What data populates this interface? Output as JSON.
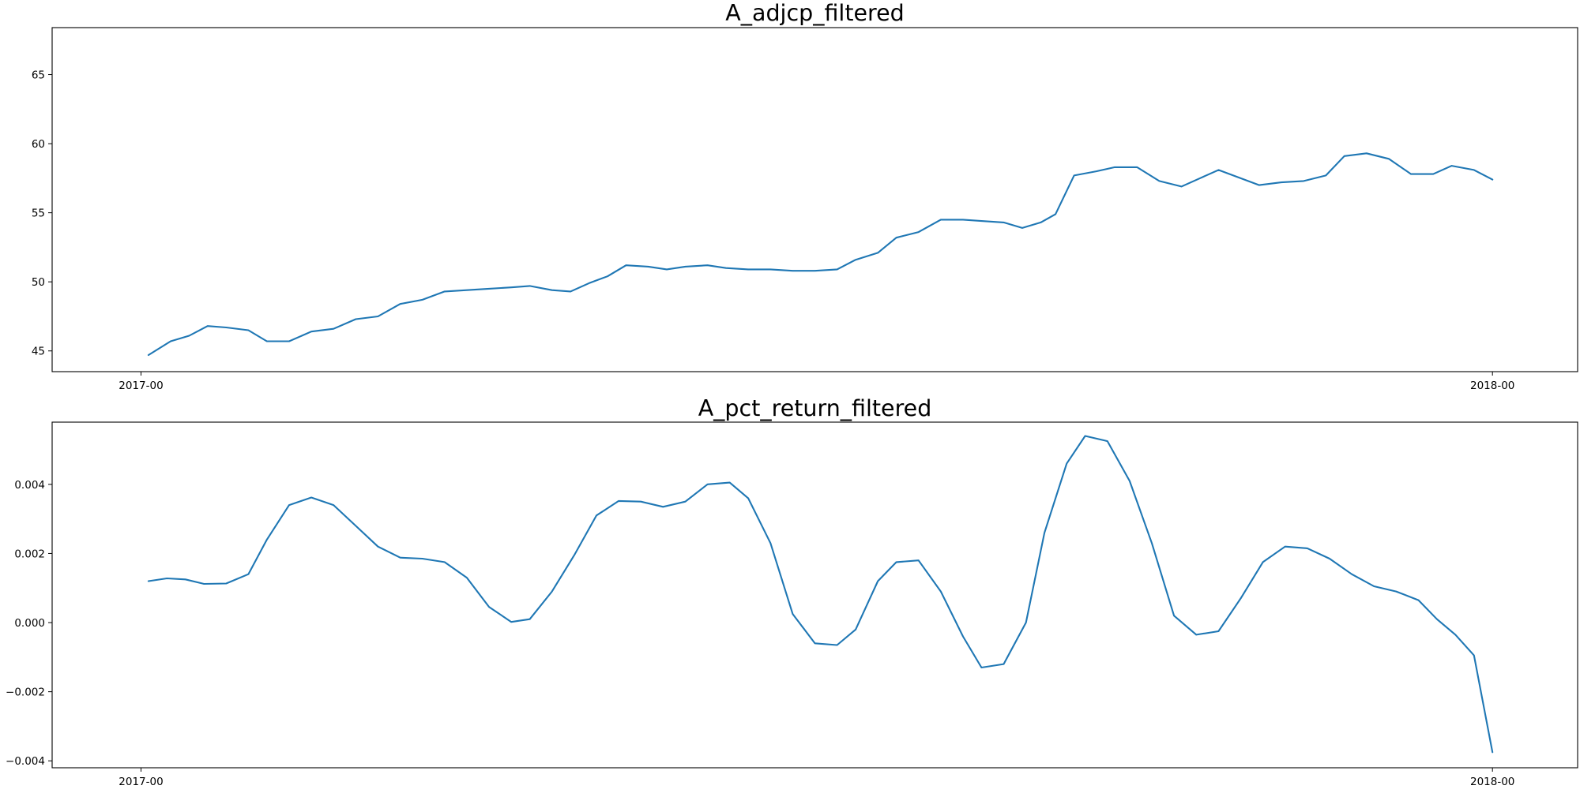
{
  "chart_data": [
    {
      "type": "line",
      "title": "A_adjcp_filtered",
      "xlabel": "",
      "ylabel": "",
      "x_axis": {
        "type": "date",
        "ticks": [
          {
            "date": "2017-01-01",
            "label": "2017-00"
          },
          {
            "date": "2018-01-01",
            "label": "2018-00"
          }
        ],
        "xlim": [
          "2016-12-08",
          "2018-01-24"
        ]
      },
      "ylim": [
        43.5,
        68.4
      ],
      "yticks": [
        {
          "value": 45,
          "label": "45"
        },
        {
          "value": 50,
          "label": "50"
        },
        {
          "value": 55,
          "label": "55"
        },
        {
          "value": 60,
          "label": "60"
        },
        {
          "value": 65,
          "label": "65"
        }
      ],
      "grid": false,
      "series": [
        {
          "color": "#1f77b4",
          "points": [
            [
              "2017-01-03",
              44.7
            ],
            [
              "2017-01-09",
              45.7
            ],
            [
              "2017-01-14",
              46.1
            ],
            [
              "2017-01-19",
              46.8
            ],
            [
              "2017-01-24",
              46.7
            ],
            [
              "2017-01-30",
              46.5
            ],
            [
              "2017-02-04",
              45.7
            ],
            [
              "2017-02-10",
              45.7
            ],
            [
              "2017-02-16",
              46.4
            ],
            [
              "2017-02-22",
              46.6
            ],
            [
              "2017-02-28",
              47.3
            ],
            [
              "2017-03-06",
              47.5
            ],
            [
              "2017-03-12",
              48.4
            ],
            [
              "2017-03-18",
              48.7
            ],
            [
              "2017-03-24",
              49.3
            ],
            [
              "2017-03-30",
              49.4
            ],
            [
              "2017-04-05",
              49.5
            ],
            [
              "2017-04-11",
              49.6
            ],
            [
              "2017-04-16",
              49.7
            ],
            [
              "2017-04-22",
              49.4
            ],
            [
              "2017-04-27",
              49.3
            ],
            [
              "2017-05-02",
              49.9
            ],
            [
              "2017-05-07",
              50.4
            ],
            [
              "2017-05-12",
              51.2
            ],
            [
              "2017-05-18",
              51.1
            ],
            [
              "2017-05-23",
              50.9
            ],
            [
              "2017-05-28",
              51.1
            ],
            [
              "2017-06-03",
              51.2
            ],
            [
              "2017-06-08",
              51.0
            ],
            [
              "2017-06-14",
              50.9
            ],
            [
              "2017-06-20",
              50.9
            ],
            [
              "2017-06-26",
              50.8
            ],
            [
              "2017-07-02",
              50.8
            ],
            [
              "2017-07-08",
              50.9
            ],
            [
              "2017-07-13",
              51.6
            ],
            [
              "2017-07-19",
              52.1
            ],
            [
              "2017-07-24",
              53.2
            ],
            [
              "2017-07-30",
              53.6
            ],
            [
              "2017-08-05",
              54.5
            ],
            [
              "2017-08-11",
              54.5
            ],
            [
              "2017-08-16",
              54.4
            ],
            [
              "2017-08-22",
              54.3
            ],
            [
              "2017-08-27",
              53.9
            ],
            [
              "2017-09-01",
              54.3
            ],
            [
              "2017-09-05",
              54.9
            ],
            [
              "2017-09-10",
              57.7
            ],
            [
              "2017-09-16",
              58.0
            ],
            [
              "2017-09-21",
              58.3
            ],
            [
              "2017-09-27",
              58.3
            ],
            [
              "2017-10-03",
              57.3
            ],
            [
              "2017-10-09",
              56.9
            ],
            [
              "2017-10-14",
              57.5
            ],
            [
              "2017-10-19",
              58.1
            ],
            [
              "2017-10-25",
              57.5
            ],
            [
              "2017-10-30",
              57.0
            ],
            [
              "2017-11-05",
              57.2
            ],
            [
              "2017-11-11",
              57.3
            ],
            [
              "2017-11-17",
              57.7
            ],
            [
              "2017-11-22",
              59.1
            ],
            [
              "2017-11-28",
              59.3
            ],
            [
              "2017-12-04",
              58.9
            ],
            [
              "2017-12-10",
              57.8
            ],
            [
              "2017-12-16",
              57.8
            ],
            [
              "2017-12-21",
              58.4
            ],
            [
              "2017-12-27",
              58.1
            ],
            [
              "2018-01-01",
              57.4
            ]
          ]
        }
      ]
    },
    {
      "type": "line",
      "title": "A_pct_return_filtered",
      "xlabel": "",
      "ylabel": "",
      "x_axis": {
        "type": "date",
        "ticks": [
          {
            "date": "2017-01-01",
            "label": "2017-00"
          },
          {
            "date": "2018-01-01",
            "label": "2018-00"
          }
        ],
        "xlim": [
          "2016-12-08",
          "2018-01-24"
        ]
      },
      "ylim": [
        -0.0042,
        0.0058
      ],
      "yticks": [
        {
          "value": -0.004,
          "label": "−0.004"
        },
        {
          "value": -0.002,
          "label": "−0.002"
        },
        {
          "value": 0.0,
          "label": "0.000"
        },
        {
          "value": 0.002,
          "label": "0.002"
        },
        {
          "value": 0.004,
          "label": "0.004"
        }
      ],
      "grid": false,
      "series": [
        {
          "color": "#1f77b4",
          "points": [
            [
              "2017-01-03",
              0.0012
            ],
            [
              "2017-01-08",
              0.00128
            ],
            [
              "2017-01-13",
              0.00125
            ],
            [
              "2017-01-18",
              0.00112
            ],
            [
              "2017-01-24",
              0.00113
            ],
            [
              "2017-01-30",
              0.0014
            ],
            [
              "2017-02-04",
              0.0024
            ],
            [
              "2017-02-10",
              0.0034
            ],
            [
              "2017-02-16",
              0.00362
            ],
            [
              "2017-02-22",
              0.0034
            ],
            [
              "2017-02-28",
              0.0028
            ],
            [
              "2017-03-06",
              0.0022
            ],
            [
              "2017-03-12",
              0.00188
            ],
            [
              "2017-03-18",
              0.00185
            ],
            [
              "2017-03-24",
              0.00175
            ],
            [
              "2017-03-30",
              0.0013
            ],
            [
              "2017-04-05",
              0.00045
            ],
            [
              "2017-04-11",
              2e-05
            ],
            [
              "2017-04-16",
              0.0001
            ],
            [
              "2017-04-22",
              0.0009
            ],
            [
              "2017-04-28",
              0.00195
            ],
            [
              "2017-05-04",
              0.0031
            ],
            [
              "2017-05-10",
              0.00352
            ],
            [
              "2017-05-16",
              0.0035
            ],
            [
              "2017-05-22",
              0.00335
            ],
            [
              "2017-05-28",
              0.0035
            ],
            [
              "2017-06-03",
              0.004
            ],
            [
              "2017-06-09",
              0.00405
            ],
            [
              "2017-06-14",
              0.0036
            ],
            [
              "2017-06-20",
              0.0023
            ],
            [
              "2017-06-26",
              0.00025
            ],
            [
              "2017-07-02",
              -0.0006
            ],
            [
              "2017-07-08",
              -0.00065
            ],
            [
              "2017-07-13",
              -0.0002
            ],
            [
              "2017-07-19",
              0.0012
            ],
            [
              "2017-07-24",
              0.00175
            ],
            [
              "2017-07-30",
              0.0018
            ],
            [
              "2017-08-05",
              0.0009
            ],
            [
              "2017-08-11",
              -0.0004
            ],
            [
              "2017-08-16",
              -0.0013
            ],
            [
              "2017-08-22",
              -0.0012
            ],
            [
              "2017-08-28",
              0.0
            ],
            [
              "2017-09-02",
              0.0026
            ],
            [
              "2017-09-08",
              0.0046
            ],
            [
              "2017-09-13",
              0.0054
            ],
            [
              "2017-09-19",
              0.00525
            ],
            [
              "2017-09-25",
              0.0041
            ],
            [
              "2017-10-01",
              0.0023
            ],
            [
              "2017-10-07",
              0.0002
            ],
            [
              "2017-10-13",
              -0.00035
            ],
            [
              "2017-10-19",
              -0.00025
            ],
            [
              "2017-10-25",
              0.0007
            ],
            [
              "2017-10-31",
              0.00175
            ],
            [
              "2017-11-06",
              0.0022
            ],
            [
              "2017-11-12",
              0.00215
            ],
            [
              "2017-11-18",
              0.00185
            ],
            [
              "2017-11-24",
              0.0014
            ],
            [
              "2017-11-30",
              0.00105
            ],
            [
              "2017-12-06",
              0.0009
            ],
            [
              "2017-12-12",
              0.00065
            ],
            [
              "2017-12-17",
              0.0001
            ],
            [
              "2017-12-22",
              -0.00035
            ],
            [
              "2017-12-27",
              -0.00095
            ],
            [
              "2018-01-01",
              -0.00375
            ]
          ]
        }
      ]
    }
  ]
}
